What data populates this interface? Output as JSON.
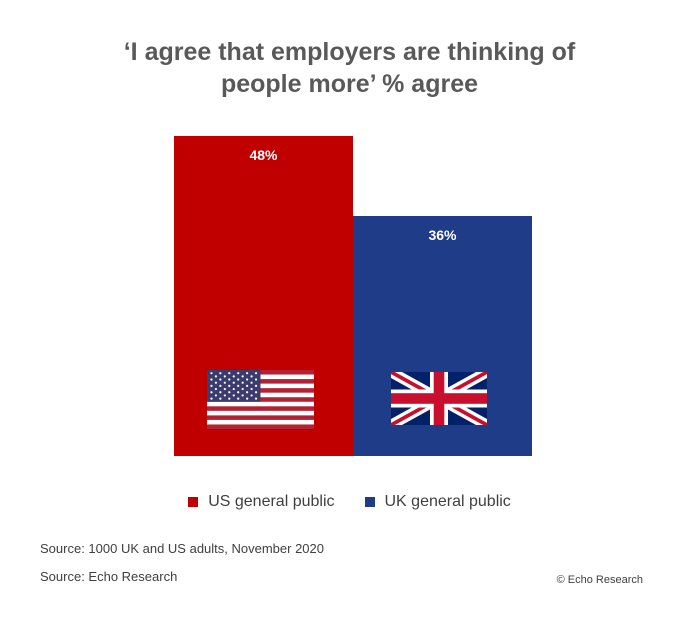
{
  "title_lines": [
    "‘I agree that employers are thinking of",
    "people more’ % agree"
  ],
  "chart_data": {
    "type": "bar",
    "title": "‘I agree that employers are thinking of people more’ % agree",
    "categories": [
      "US general public",
      "UK general public"
    ],
    "values": [
      48,
      36
    ],
    "data_labels": [
      "48%",
      "36%"
    ],
    "colors": [
      "#c00000",
      "#1f3c88"
    ],
    "ylim": [
      0,
      48
    ],
    "grid": false,
    "legend": "bottom"
  },
  "legend": {
    "items": [
      {
        "label": "US general public",
        "color": "#c00000",
        "icon": "us-flag-icon"
      },
      {
        "label": "UK general public",
        "color": "#1f3c88",
        "icon": "uk-flag-icon"
      }
    ]
  },
  "footer": {
    "source1": "Source:  1000 UK and US adults, November 2020",
    "source2": "Source: Echo Research",
    "copyright": "© Echo Research"
  }
}
